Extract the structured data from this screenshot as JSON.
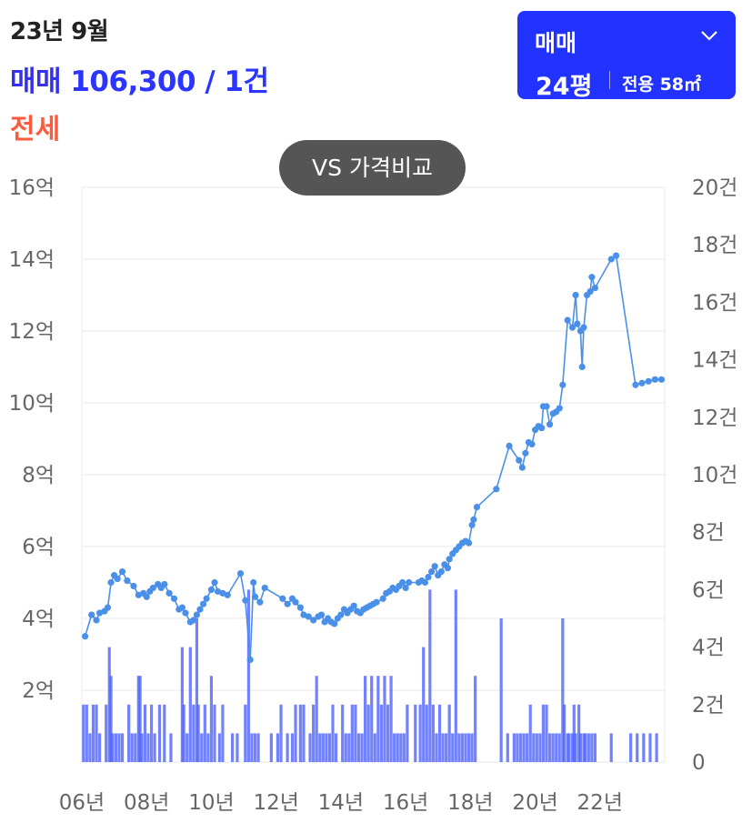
{
  "header": {
    "period": "23년 9월",
    "sale_label": "매매",
    "sale_value": "106,300 / 1건",
    "jeonse_label": "전세"
  },
  "selector": {
    "type": "매매",
    "size": "24평",
    "area": "전용 58㎡",
    "icon": "chevron-down-icon"
  },
  "compare_button": "VS 가격비교",
  "colors": {
    "line": "#4a90e8",
    "bar": "#4f63ff",
    "accent": "#2233ff",
    "jeonse": "#ff5a3c"
  },
  "chart_data": {
    "type": "line",
    "grid": true,
    "x_range": [
      2006,
      2024
    ],
    "x_ticks": [
      "06년",
      "08년",
      "10년",
      "12년",
      "14년",
      "16년",
      "18년",
      "20년",
      "22년"
    ],
    "y_left": {
      "range": [
        0,
        16
      ],
      "unit": "억",
      "ticks": [
        "16억",
        "14억",
        "12억",
        "10억",
        "8억",
        "6억",
        "4억",
        "2억"
      ]
    },
    "y_right": {
      "range": [
        0,
        20
      ],
      "unit": "건",
      "ticks": [
        "20건",
        "18건",
        "16건",
        "14건",
        "12건",
        "10건",
        "8건",
        "6건",
        "4건",
        "2건",
        "0"
      ]
    },
    "series": [
      {
        "type": "line",
        "axis": "left",
        "points": [
          [
            2006.1,
            3.5
          ],
          [
            2006.3,
            4.1
          ],
          [
            2006.45,
            3.95
          ],
          [
            2006.55,
            4.15
          ],
          [
            2006.7,
            4.2
          ],
          [
            2006.8,
            4.3
          ],
          [
            2006.9,
            5.0
          ],
          [
            2007.0,
            5.2
          ],
          [
            2007.1,
            5.1
          ],
          [
            2007.25,
            5.3
          ],
          [
            2007.4,
            5.05
          ],
          [
            2007.6,
            4.9
          ],
          [
            2007.75,
            4.65
          ],
          [
            2007.9,
            4.7
          ],
          [
            2008.0,
            4.6
          ],
          [
            2008.1,
            4.75
          ],
          [
            2008.2,
            4.85
          ],
          [
            2008.35,
            4.95
          ],
          [
            2008.45,
            4.85
          ],
          [
            2008.55,
            4.95
          ],
          [
            2008.7,
            4.7
          ],
          [
            2008.85,
            4.55
          ],
          [
            2009.0,
            4.25
          ],
          [
            2009.1,
            4.3
          ],
          [
            2009.2,
            4.15
          ],
          [
            2009.35,
            3.9
          ],
          [
            2009.45,
            3.95
          ],
          [
            2009.55,
            4.1
          ],
          [
            2009.65,
            4.25
          ],
          [
            2009.75,
            4.4
          ],
          [
            2009.85,
            4.55
          ],
          [
            2010.0,
            4.8
          ],
          [
            2010.1,
            5.0
          ],
          [
            2010.2,
            4.75
          ],
          [
            2010.35,
            4.7
          ],
          [
            2010.5,
            4.65
          ],
          [
            2010.9,
            5.25
          ],
          [
            2011.05,
            4.5
          ],
          [
            2011.2,
            2.85
          ],
          [
            2011.3,
            5.0
          ],
          [
            2011.35,
            4.6
          ],
          [
            2011.5,
            4.45
          ],
          [
            2011.65,
            4.85
          ],
          [
            2012.2,
            4.55
          ],
          [
            2012.35,
            4.4
          ],
          [
            2012.5,
            4.55
          ],
          [
            2012.6,
            4.45
          ],
          [
            2012.75,
            4.3
          ],
          [
            2012.85,
            4.1
          ],
          [
            2013.0,
            4.05
          ],
          [
            2013.15,
            3.95
          ],
          [
            2013.3,
            4.05
          ],
          [
            2013.4,
            4.1
          ],
          [
            2013.5,
            3.9
          ],
          [
            2013.6,
            4.0
          ],
          [
            2013.7,
            3.9
          ],
          [
            2013.8,
            3.85
          ],
          [
            2013.9,
            4.0
          ],
          [
            2014.0,
            4.1
          ],
          [
            2014.1,
            4.25
          ],
          [
            2014.2,
            4.15
          ],
          [
            2014.3,
            4.25
          ],
          [
            2014.4,
            4.35
          ],
          [
            2014.5,
            4.2
          ],
          [
            2014.6,
            4.15
          ],
          [
            2014.7,
            4.25
          ],
          [
            2014.8,
            4.3
          ],
          [
            2014.9,
            4.35
          ],
          [
            2015.0,
            4.4
          ],
          [
            2015.1,
            4.45
          ],
          [
            2015.3,
            4.55
          ],
          [
            2015.4,
            4.7
          ],
          [
            2015.5,
            4.75
          ],
          [
            2015.6,
            4.85
          ],
          [
            2015.7,
            4.8
          ],
          [
            2015.8,
            4.9
          ],
          [
            2015.9,
            5.0
          ],
          [
            2016.0,
            4.85
          ],
          [
            2016.1,
            5.0
          ],
          [
            2016.4,
            5.0
          ],
          [
            2016.5,
            5.05
          ],
          [
            2016.6,
            5.0
          ],
          [
            2016.7,
            5.15
          ],
          [
            2016.8,
            5.3
          ],
          [
            2016.9,
            5.45
          ],
          [
            2017.0,
            5.2
          ],
          [
            2017.1,
            5.3
          ],
          [
            2017.2,
            5.5
          ],
          [
            2017.3,
            5.4
          ],
          [
            2017.35,
            5.65
          ],
          [
            2017.45,
            5.8
          ],
          [
            2017.55,
            5.9
          ],
          [
            2017.65,
            6.0
          ],
          [
            2017.75,
            6.1
          ],
          [
            2017.85,
            6.15
          ],
          [
            2017.95,
            6.1
          ],
          [
            2018.05,
            6.6
          ],
          [
            2018.1,
            6.75
          ],
          [
            2018.2,
            7.1
          ],
          [
            2018.8,
            7.6
          ],
          [
            2019.2,
            8.8
          ],
          [
            2019.5,
            8.4
          ],
          [
            2019.6,
            8.2
          ],
          [
            2019.7,
            8.6
          ],
          [
            2019.8,
            8.9
          ],
          [
            2019.9,
            8.85
          ],
          [
            2020.0,
            9.25
          ],
          [
            2020.1,
            9.35
          ],
          [
            2020.2,
            9.3
          ],
          [
            2020.25,
            9.9
          ],
          [
            2020.35,
            9.9
          ],
          [
            2020.45,
            9.4
          ],
          [
            2020.55,
            9.7
          ],
          [
            2020.65,
            9.75
          ],
          [
            2020.75,
            9.85
          ],
          [
            2020.85,
            10.5
          ],
          [
            2021.0,
            12.3
          ],
          [
            2021.15,
            12.1
          ],
          [
            2021.25,
            13.0
          ],
          [
            2021.3,
            12.2
          ],
          [
            2021.4,
            12.0
          ],
          [
            2021.45,
            11.0
          ],
          [
            2021.5,
            12.1
          ],
          [
            2021.6,
            13.0
          ],
          [
            2021.7,
            13.1
          ],
          [
            2021.75,
            13.5
          ],
          [
            2021.85,
            13.2
          ],
          [
            2022.35,
            14.0
          ],
          [
            2022.5,
            14.1
          ],
          [
            2023.1,
            10.5
          ],
          [
            2023.3,
            10.55
          ],
          [
            2023.5,
            10.6
          ],
          [
            2023.7,
            10.65
          ],
          [
            2023.9,
            10.65
          ]
        ]
      },
      {
        "type": "bar",
        "axis": "right",
        "points": [
          [
            2006.05,
            2
          ],
          [
            2006.15,
            2
          ],
          [
            2006.25,
            1
          ],
          [
            2006.35,
            2
          ],
          [
            2006.45,
            2
          ],
          [
            2006.55,
            1
          ],
          [
            2006.75,
            2
          ],
          [
            2006.85,
            4
          ],
          [
            2006.9,
            3
          ],
          [
            2006.95,
            1
          ],
          [
            2007.05,
            1
          ],
          [
            2007.15,
            1
          ],
          [
            2007.25,
            1
          ],
          [
            2007.45,
            2
          ],
          [
            2007.55,
            1
          ],
          [
            2007.65,
            1
          ],
          [
            2007.75,
            3
          ],
          [
            2007.8,
            3
          ],
          [
            2007.85,
            1
          ],
          [
            2007.95,
            2
          ],
          [
            2008.05,
            1
          ],
          [
            2008.15,
            2
          ],
          [
            2008.25,
            1
          ],
          [
            2008.4,
            2
          ],
          [
            2008.55,
            2
          ],
          [
            2008.75,
            1
          ],
          [
            2009.1,
            4
          ],
          [
            2009.15,
            2
          ],
          [
            2009.25,
            1
          ],
          [
            2009.35,
            4
          ],
          [
            2009.45,
            2
          ],
          [
            2009.55,
            5
          ],
          [
            2009.6,
            2
          ],
          [
            2009.7,
            1
          ],
          [
            2009.8,
            2
          ],
          [
            2009.9,
            1
          ],
          [
            2010.0,
            3
          ],
          [
            2010.1,
            2
          ],
          [
            2010.25,
            1
          ],
          [
            2010.35,
            2
          ],
          [
            2010.65,
            1
          ],
          [
            2010.8,
            1
          ],
          [
            2011.05,
            2
          ],
          [
            2011.15,
            6
          ],
          [
            2011.25,
            1
          ],
          [
            2011.35,
            1
          ],
          [
            2011.45,
            1
          ],
          [
            2011.85,
            1
          ],
          [
            2012.05,
            1
          ],
          [
            2012.15,
            2
          ],
          [
            2012.35,
            1
          ],
          [
            2012.5,
            1
          ],
          [
            2012.6,
            2
          ],
          [
            2012.75,
            2
          ],
          [
            2012.85,
            2
          ],
          [
            2013.05,
            1
          ],
          [
            2013.15,
            2
          ],
          [
            2013.25,
            3
          ],
          [
            2013.35,
            1
          ],
          [
            2013.45,
            1
          ],
          [
            2013.55,
            1
          ],
          [
            2013.65,
            1
          ],
          [
            2013.75,
            2
          ],
          [
            2013.85,
            1
          ],
          [
            2014.05,
            2
          ],
          [
            2014.15,
            1
          ],
          [
            2014.25,
            1
          ],
          [
            2014.35,
            2
          ],
          [
            2014.45,
            2
          ],
          [
            2014.55,
            1
          ],
          [
            2014.65,
            1
          ],
          [
            2014.75,
            3
          ],
          [
            2014.85,
            2
          ],
          [
            2014.95,
            3
          ],
          [
            2015.05,
            1
          ],
          [
            2015.15,
            3
          ],
          [
            2015.25,
            2
          ],
          [
            2015.35,
            3
          ],
          [
            2015.45,
            2
          ],
          [
            2015.55,
            3
          ],
          [
            2015.65,
            1
          ],
          [
            2015.75,
            1
          ],
          [
            2015.85,
            1
          ],
          [
            2015.95,
            1
          ],
          [
            2016.05,
            2
          ],
          [
            2016.3,
            2
          ],
          [
            2016.45,
            2
          ],
          [
            2016.55,
            4
          ],
          [
            2016.65,
            2
          ],
          [
            2016.75,
            6
          ],
          [
            2016.85,
            2
          ],
          [
            2016.95,
            1
          ],
          [
            2017.05,
            2
          ],
          [
            2017.15,
            1
          ],
          [
            2017.25,
            1
          ],
          [
            2017.35,
            2
          ],
          [
            2017.45,
            1
          ],
          [
            2017.55,
            6
          ],
          [
            2017.65,
            1
          ],
          [
            2017.75,
            1
          ],
          [
            2017.85,
            1
          ],
          [
            2017.95,
            1
          ],
          [
            2018.05,
            1
          ],
          [
            2018.15,
            3
          ],
          [
            2018.95,
            5
          ],
          [
            2019.15,
            1
          ],
          [
            2019.35,
            1
          ],
          [
            2019.45,
            1
          ],
          [
            2019.55,
            1
          ],
          [
            2019.65,
            1
          ],
          [
            2019.75,
            1
          ],
          [
            2019.85,
            2
          ],
          [
            2019.95,
            1
          ],
          [
            2020.05,
            1
          ],
          [
            2020.15,
            1
          ],
          [
            2020.25,
            2
          ],
          [
            2020.35,
            2
          ],
          [
            2020.45,
            1
          ],
          [
            2020.55,
            1
          ],
          [
            2020.65,
            1
          ],
          [
            2020.75,
            1
          ],
          [
            2020.85,
            5
          ],
          [
            2020.9,
            2
          ],
          [
            2021.0,
            1
          ],
          [
            2021.05,
            1
          ],
          [
            2021.15,
            1
          ],
          [
            2021.2,
            2
          ],
          [
            2021.25,
            1
          ],
          [
            2021.35,
            2
          ],
          [
            2021.4,
            1
          ],
          [
            2021.5,
            1
          ],
          [
            2021.55,
            1
          ],
          [
            2021.65,
            1
          ],
          [
            2021.75,
            1
          ],
          [
            2021.85,
            1
          ],
          [
            2022.35,
            1
          ],
          [
            2022.95,
            1
          ],
          [
            2023.15,
            1
          ],
          [
            2023.35,
            1
          ],
          [
            2023.55,
            1
          ],
          [
            2023.75,
            1
          ]
        ]
      }
    ]
  }
}
